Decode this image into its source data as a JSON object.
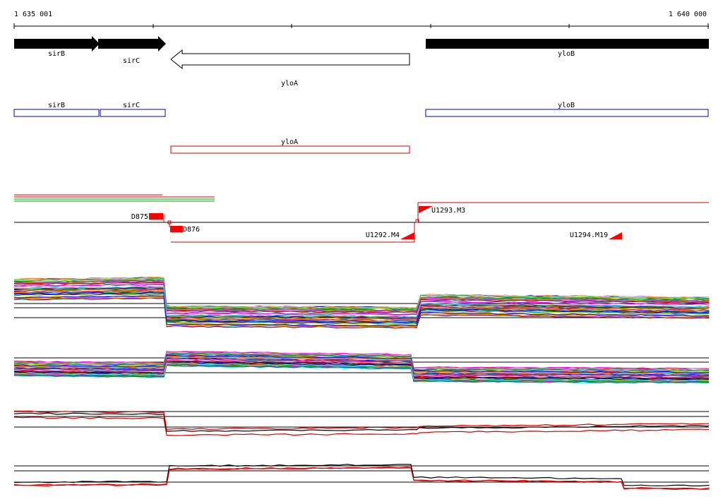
{
  "ruler": {
    "start_label": "1 635 001",
    "end_label": "1 640 000"
  },
  "genes_top": [
    {
      "name": "sirB",
      "strand": "+",
      "style": "filled"
    },
    {
      "name": "sirC",
      "strand": "+",
      "style": "filled"
    },
    {
      "name": "yloA",
      "strand": "-",
      "style": "outline"
    },
    {
      "name": "yloB",
      "strand": "+",
      "style": "filled"
    }
  ],
  "genes_boxes": [
    {
      "name": "sirB",
      "color": "#0000cc"
    },
    {
      "name": "sirC",
      "color": "#0000cc"
    },
    {
      "name": "yloB",
      "color": "#0000cc"
    },
    {
      "name": "yloA",
      "color": "#dd0000"
    }
  ],
  "features": [
    {
      "name": "D875"
    },
    {
      "name": "D876"
    },
    {
      "name": "U1292.M4"
    },
    {
      "name": "U1293.M3"
    },
    {
      "name": "U1294.M19"
    }
  ],
  "colors": {
    "plus_strand": "#0000cc",
    "minus_strand": "#dd0000",
    "feature": "#ff0000"
  }
}
